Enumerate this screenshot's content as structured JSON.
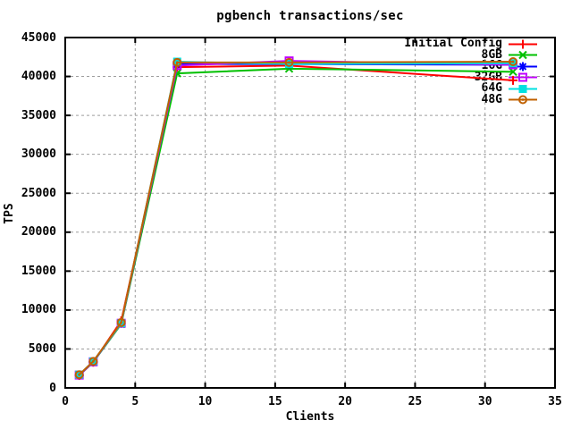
{
  "page": {
    "background": "#ffffff"
  },
  "chart_data": {
    "type": "line",
    "title": "pgbench transactions/sec",
    "xlabel": "Clients",
    "ylabel": "TPS",
    "x": [
      1,
      2,
      4,
      8,
      16,
      32
    ],
    "xlim": [
      0,
      35
    ],
    "ylim": [
      0,
      45000
    ],
    "xticks": [
      0,
      5,
      10,
      15,
      20,
      25,
      30,
      35
    ],
    "yticks": [
      0,
      5000,
      10000,
      15000,
      20000,
      25000,
      30000,
      35000,
      40000,
      45000
    ],
    "grid": true,
    "grid_color": "#9e9e9e",
    "axis_color": "#000000",
    "legend_position": "top-right-inside",
    "series": [
      {
        "name": "Initial Config",
        "color": "#ff0000",
        "marker": "plus",
        "values": [
          1600,
          3300,
          8600,
          41200,
          41400,
          39500
        ]
      },
      {
        "name": "8GB",
        "color": "#00c000",
        "marker": "cross",
        "values": [
          1650,
          3300,
          8200,
          40400,
          41000,
          40600
        ]
      },
      {
        "name": "16G",
        "color": "#0000ff",
        "marker": "asterisk",
        "values": [
          1650,
          3350,
          8300,
          41600,
          41600,
          41500
        ]
      },
      {
        "name": "32GB",
        "color": "#c000ff",
        "marker": "open-square",
        "values": [
          1650,
          3350,
          8300,
          41400,
          42000,
          41500
        ]
      },
      {
        "name": "64G",
        "color": "#00e0e0",
        "marker": "filled-square",
        "values": [
          1700,
          3400,
          8300,
          41900,
          41600,
          41700
        ]
      },
      {
        "name": "48G",
        "color": "#c06000",
        "marker": "dotted-circle",
        "values": [
          1700,
          3400,
          8400,
          41800,
          41800,
          41900
        ]
      }
    ]
  }
}
